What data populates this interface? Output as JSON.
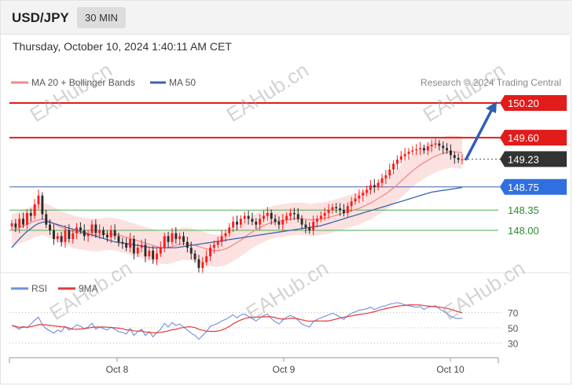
{
  "header": {
    "symbol": "USD/JPY",
    "timeframe": "30 MIN"
  },
  "timestamp": "Thursday, October 10, 2024 1:40:11 AM CET",
  "legend": {
    "ma20": "MA 20 + Bollinger Bands",
    "ma50": "MA 50"
  },
  "credit": "Research © 2024 Trading Central",
  "watermark": "EAHub.cn",
  "colors": {
    "up": "#ff1a1a",
    "ma20": "#f28a8a",
    "ma50": "#3b64ad",
    "band": "#fcdcdc",
    "rsi": "#6f8fdc",
    "rsi_ma": "#e23a3a",
    "support": "#4caf50",
    "current": "#333333",
    "resistance": "#e21b1b"
  },
  "chart_data": {
    "type": "candlestick",
    "price_levels": [
      {
        "label": "150.20",
        "value": 150.2,
        "style": "resistance-red"
      },
      {
        "label": "149.60",
        "value": 149.6,
        "style": "resistance-red"
      },
      {
        "label": "149.23",
        "value": 149.23,
        "style": "current-dark"
      },
      {
        "label": "148.75",
        "value": 148.75,
        "style": "pivot-blue"
      },
      {
        "label": "148.35",
        "value": 148.35,
        "style": "support-green"
      },
      {
        "label": "148.00",
        "value": 148.0,
        "style": "support-green"
      }
    ],
    "x_ticks": [
      "Oct 8",
      "Oct 9",
      "Oct 10"
    ],
    "close": [
      148.12,
      148.05,
      148.2,
      148.1,
      148.3,
      148.25,
      148.45,
      148.6,
      148.28,
      148.1,
      148.0,
      147.85,
      147.9,
      147.8,
      148.0,
      147.85,
      147.95,
      148.05,
      148.0,
      147.9,
      147.95,
      148.1,
      147.95,
      148.0,
      147.92,
      147.88,
      148.0,
      147.9,
      147.8,
      147.78,
      147.7,
      147.85,
      147.6,
      147.7,
      147.75,
      147.55,
      147.65,
      147.5,
      147.6,
      147.7,
      147.9,
      147.8,
      147.95,
      147.85,
      147.9,
      147.8,
      147.7,
      147.6,
      147.5,
      147.35,
      147.45,
      147.55,
      147.7,
      147.75,
      147.8,
      147.9,
      147.95,
      148.05,
      148.15,
      148.1,
      148.2,
      148.25,
      148.2,
      148.15,
      148.1,
      148.2,
      148.25,
      148.3,
      148.2,
      148.15,
      148.1,
      148.18,
      148.25,
      148.3,
      148.28,
      148.2,
      148.1,
      148.05,
      148.0,
      148.15,
      148.2,
      148.25,
      148.3,
      148.35,
      148.4,
      148.38,
      148.35,
      148.3,
      148.42,
      148.5,
      148.55,
      148.6,
      148.65,
      148.7,
      148.78,
      148.75,
      148.82,
      148.9,
      148.95,
      149.05,
      149.15,
      149.22,
      149.28,
      149.32,
      149.36,
      149.38,
      149.4,
      149.42,
      149.38,
      149.45,
      149.48,
      149.5,
      149.46,
      149.42,
      149.38,
      149.3,
      149.25,
      149.22,
      149.23
    ],
    "ma20": [
      148.0,
      148.02,
      148.05,
      148.08,
      148.1,
      148.13,
      148.16,
      148.18,
      148.2,
      148.18,
      148.15,
      148.12,
      148.08,
      148.05,
      148.03,
      148.0,
      147.98,
      147.96,
      147.95,
      147.94,
      147.93,
      147.92,
      147.92,
      147.92,
      147.93,
      147.94,
      147.94,
      147.93,
      147.92,
      147.9,
      147.88,
      147.86,
      147.84,
      147.82,
      147.8,
      147.78,
      147.76,
      147.74,
      147.72,
      147.7,
      147.7,
      147.7,
      147.72,
      147.74,
      147.76,
      147.77,
      147.77,
      147.76,
      147.74,
      147.72,
      147.7,
      147.68,
      147.66,
      147.65,
      147.65,
      147.66,
      147.68,
      147.71,
      147.75,
      147.79,
      147.83,
      147.88,
      147.93,
      147.97,
      148.01,
      148.05,
      148.08,
      148.11,
      148.13,
      148.15,
      148.16,
      148.17,
      148.18,
      148.19,
      148.2,
      148.2,
      148.2,
      148.19,
      148.18,
      148.18,
      148.19,
      148.2,
      148.21,
      148.22,
      148.24,
      148.26,
      148.28,
      148.3,
      148.32,
      148.34,
      148.36,
      148.38,
      148.41,
      148.44,
      148.47,
      148.51,
      148.55,
      148.59,
      148.63,
      148.68,
      148.73,
      148.79,
      148.85,
      148.91,
      148.97,
      149.03,
      149.08,
      149.13,
      149.17,
      149.21,
      149.25,
      149.28,
      149.31,
      149.33,
      149.35,
      149.36,
      149.36,
      149.35,
      149.34
    ],
    "ma50": [
      147.7,
      147.78,
      147.85,
      147.92,
      147.98,
      148.03,
      148.08,
      148.12,
      148.14,
      148.15,
      148.14,
      148.12,
      148.1,
      148.08,
      148.06,
      148.04,
      148.02,
      148.0,
      147.98,
      147.96,
      147.94,
      147.92,
      147.9,
      147.88,
      147.86,
      147.84,
      147.82,
      147.8,
      147.79,
      147.78,
      147.77,
      147.76,
      147.75,
      147.74,
      147.73,
      147.72,
      147.71,
      147.7,
      147.7,
      147.7,
      147.7,
      147.7,
      147.7,
      147.7,
      147.71,
      147.72,
      147.73,
      147.74,
      147.75,
      147.76,
      147.77,
      147.78,
      147.79,
      147.8,
      147.81,
      147.82,
      147.83,
      147.84,
      147.85,
      147.86,
      147.87,
      147.88,
      147.89,
      147.9,
      147.91,
      147.92,
      147.93,
      147.94,
      147.95,
      147.96,
      147.97,
      147.98,
      147.99,
      148.0,
      148.01,
      148.02,
      148.03,
      148.04,
      148.05,
      148.06,
      148.07,
      148.08,
      148.1,
      148.12,
      148.14,
      148.16,
      148.18,
      148.2,
      148.22,
      148.24,
      148.26,
      148.28,
      148.3,
      148.32,
      148.34,
      148.36,
      148.38,
      148.4,
      148.42,
      148.44,
      148.46,
      148.48,
      148.5,
      148.52,
      148.54,
      148.56,
      148.58,
      148.6,
      148.62,
      148.64,
      148.66,
      148.67,
      148.68,
      148.69,
      148.7,
      148.71,
      148.72,
      148.73,
      148.74
    ],
    "bb_width": 0.28,
    "projection": {
      "from": 149.23,
      "to": 150.2
    },
    "rsi": {
      "levels": [
        70,
        50,
        30
      ],
      "labels": [
        "RSI",
        "9MA"
      ],
      "values": [
        53,
        51,
        48,
        52,
        50,
        55,
        60,
        64,
        54,
        49,
        46,
        43,
        47,
        45,
        52,
        47,
        50,
        54,
        52,
        49,
        51,
        56,
        48,
        51,
        49,
        47,
        51,
        48,
        45,
        44,
        42,
        49,
        40,
        45,
        48,
        40,
        45,
        38,
        44,
        48,
        56,
        51,
        57,
        53,
        55,
        51,
        47,
        43,
        40,
        35,
        40,
        45,
        52,
        54,
        56,
        59,
        61,
        64,
        67,
        63,
        67,
        68,
        65,
        62,
        59,
        63,
        66,
        68,
        62,
        58,
        55,
        60,
        64,
        66,
        64,
        60,
        55,
        53,
        51,
        58,
        61,
        63,
        65,
        67,
        69,
        67,
        64,
        61,
        66,
        69,
        71,
        73,
        74,
        75,
        77,
        74,
        76,
        78,
        79,
        81,
        82,
        83,
        82,
        80,
        79,
        78,
        77,
        78,
        74,
        77,
        78,
        79,
        75,
        72,
        69,
        65,
        63,
        62,
        63
      ]
    }
  }
}
